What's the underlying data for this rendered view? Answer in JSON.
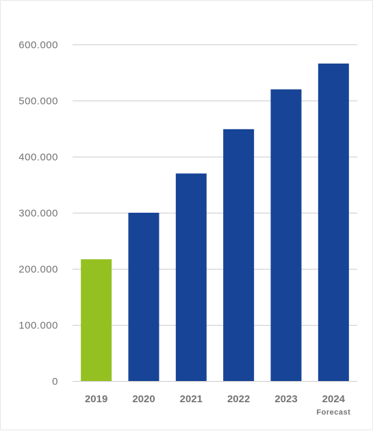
{
  "chart_data": {
    "type": "bar",
    "title": "",
    "xlabel": "",
    "ylabel": "",
    "categories": [
      "2019",
      "2020",
      "2021",
      "2022",
      "2023",
      "2024"
    ],
    "category_sublabels": [
      "",
      "",
      "",
      "",
      "",
      "Forecast"
    ],
    "values": [
      217000,
      300000,
      370000,
      449000,
      520000,
      566000
    ],
    "bar_colors": [
      "#95c022",
      "#174496",
      "#174496",
      "#174496",
      "#174496",
      "#174496"
    ],
    "ylim": [
      0,
      600000
    ],
    "y_ticks": [
      0,
      100000,
      200000,
      300000,
      400000,
      500000,
      600000
    ],
    "y_tick_labels": [
      "0",
      "100.000",
      "200.000",
      "300.000",
      "400.000",
      "500.000",
      "600.000"
    ],
    "grid": true,
    "legend": "none"
  }
}
